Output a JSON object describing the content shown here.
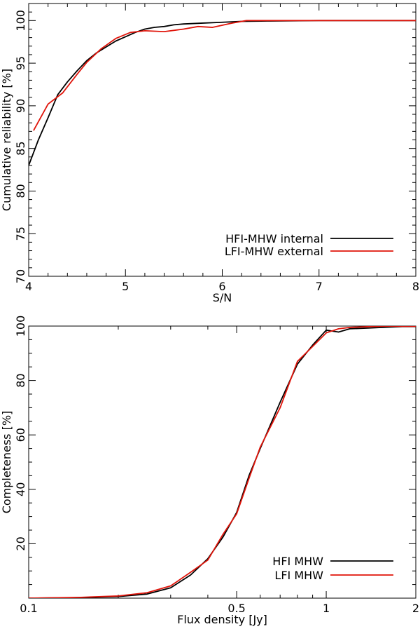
{
  "chart_data": [
    {
      "type": "line",
      "xlabel": "S/N",
      "ylabel": "Cumulative reliability [%]",
      "xlim": [
        4,
        8
      ],
      "ylim": [
        70,
        102
      ],
      "x_scale": "linear",
      "x_ticks": [
        4,
        5,
        6,
        7,
        8
      ],
      "y_ticks": [
        70,
        75,
        80,
        85,
        90,
        95,
        100
      ],
      "legend_position": "bottom-right",
      "series": [
        {
          "name": "HFI-MHW internal",
          "color": "#000000",
          "x": [
            4.0,
            4.1,
            4.2,
            4.3,
            4.4,
            4.5,
            4.6,
            4.7,
            4.8,
            4.9,
            5.0,
            5.1,
            5.2,
            5.3,
            5.4,
            5.5,
            5.6,
            5.8,
            6.0,
            6.2,
            6.5,
            7.0,
            7.5,
            8.0
          ],
          "y": [
            83.0,
            86.0,
            88.6,
            91.3,
            92.8,
            94.1,
            95.3,
            96.2,
            96.9,
            97.6,
            98.1,
            98.6,
            99.0,
            99.2,
            99.3,
            99.5,
            99.6,
            99.7,
            99.8,
            99.9,
            99.95,
            100.0,
            100.0,
            100.0
          ]
        },
        {
          "name": "LFI-MHW external",
          "color": "#e0140a",
          "x": [
            4.05,
            4.2,
            4.35,
            4.5,
            4.6,
            4.75,
            4.9,
            5.05,
            5.2,
            5.4,
            5.6,
            5.75,
            5.9,
            6.1,
            6.25,
            6.5,
            7.0,
            7.5,
            8.0
          ],
          "y": [
            87.1,
            90.2,
            91.5,
            93.7,
            95.1,
            96.7,
            97.9,
            98.6,
            98.8,
            98.7,
            99.0,
            99.3,
            99.2,
            99.7,
            100.0,
            100.0,
            100.0,
            100.0,
            100.0
          ]
        }
      ]
    },
    {
      "type": "line",
      "xlabel": "Flux density [Jy]",
      "ylabel": "Completeness [%]",
      "xlim": [
        0.1,
        2
      ],
      "ylim": [
        0,
        100
      ],
      "x_scale": "log",
      "x_ticks": [
        0.1,
        0.5,
        1,
        2
      ],
      "y_ticks": [
        20,
        40,
        60,
        80,
        100
      ],
      "legend_position": "bottom-right",
      "series": [
        {
          "name": "HFI MHW",
          "color": "#000000",
          "x": [
            0.1,
            0.15,
            0.2,
            0.25,
            0.3,
            0.35,
            0.4,
            0.45,
            0.5,
            0.55,
            0.6,
            0.7,
            0.8,
            0.9,
            1.0,
            1.1,
            1.2,
            1.4,
            1.6,
            1.8,
            2.0
          ],
          "y": [
            0.0,
            0.2,
            0.6,
            1.5,
            3.8,
            8.5,
            14.5,
            22.5,
            31.5,
            45.0,
            55.0,
            72.0,
            86.0,
            93.0,
            98.5,
            97.8,
            99.0,
            99.3,
            99.6,
            99.8,
            99.8
          ]
        },
        {
          "name": "LFI MHW",
          "color": "#e0140a",
          "x": [
            0.1,
            0.15,
            0.2,
            0.25,
            0.3,
            0.35,
            0.4,
            0.45,
            0.5,
            0.55,
            0.6,
            0.7,
            0.8,
            0.9,
            1.0,
            1.1,
            1.2,
            1.4,
            1.6,
            1.8,
            2.0
          ],
          "y": [
            0.0,
            0.3,
            0.8,
            2.0,
            4.5,
            9.5,
            14.0,
            23.5,
            31.0,
            44.0,
            55.5,
            70.0,
            87.0,
            92.5,
            97.5,
            99.0,
            99.5,
            99.8,
            100.0,
            99.9,
            99.9
          ]
        }
      ]
    }
  ]
}
